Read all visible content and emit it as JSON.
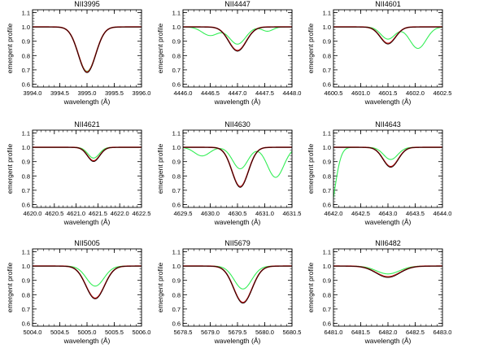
{
  "chart_data": [
    {
      "type": "line",
      "title": "NII3995",
      "xlabel": "wavelength (Å)",
      "ylabel": "emergent profile",
      "xlim": [
        3994.0,
        3996.0
      ],
      "ylim": [
        0.58,
        1.12
      ],
      "xticks": [
        "3994.0",
        "3994.5",
        "3995.0",
        "3995.5",
        "3996.0"
      ],
      "yticks": [
        "0.6",
        "0.7",
        "0.8",
        "0.9",
        "1.0",
        "1.1"
      ],
      "series": [
        {
          "name": "red",
          "color": "#b01010",
          "lines": [
            {
              "c": 3995.0,
              "d": 0.315,
              "w": 0.16
            }
          ]
        },
        {
          "name": "black",
          "color": "#000000",
          "lines": [
            {
              "c": 3995.0,
              "d": 0.32,
              "w": 0.16
            }
          ]
        },
        {
          "name": "green",
          "color": "#33ee55",
          "lines": [
            {
              "c": 3995.0,
              "d": 0.31,
              "w": 0.16
            }
          ]
        }
      ]
    },
    {
      "type": "line",
      "title": "NII4447",
      "xlabel": "wavelength (Å)",
      "ylabel": "emergent profile",
      "xlim": [
        4446.0,
        4448.0
      ],
      "ylim": [
        0.58,
        1.12
      ],
      "xticks": [
        "4446.0",
        "4446.5",
        "4447.0",
        "4447.5",
        "4448.0"
      ],
      "yticks": [
        "0.6",
        "0.7",
        "0.8",
        "0.9",
        "1.0",
        "1.1"
      ],
      "series": [
        {
          "name": "red",
          "color": "#b01010",
          "lines": [
            {
              "c": 4447.0,
              "d": 0.165,
              "w": 0.16
            }
          ]
        },
        {
          "name": "black",
          "color": "#000000",
          "lines": [
            {
              "c": 4447.0,
              "d": 0.17,
              "w": 0.16
            }
          ]
        },
        {
          "name": "green",
          "color": "#33ee55",
          "lines": [
            {
              "c": 4447.0,
              "d": 0.12,
              "w": 0.15
            },
            {
              "c": 4446.5,
              "d": 0.06,
              "w": 0.15
            },
            {
              "c": 4447.55,
              "d": 0.03,
              "w": 0.1
            }
          ]
        }
      ]
    },
    {
      "type": "line",
      "title": "NII4601",
      "xlabel": "wavelength (Å)",
      "ylabel": "emergent profile",
      "xlim": [
        4600.5,
        4602.5
      ],
      "ylim": [
        0.58,
        1.12
      ],
      "xticks": [
        "4600.5",
        "4601.0",
        "4601.5",
        "4602.0",
        "4602.5"
      ],
      "yticks": [
        "0.6",
        "0.7",
        "0.8",
        "0.9",
        "1.0",
        "1.1"
      ],
      "series": [
        {
          "name": "red",
          "color": "#b01010",
          "lines": [
            {
              "c": 4601.5,
              "d": 0.115,
              "w": 0.14
            }
          ]
        },
        {
          "name": "black",
          "color": "#000000",
          "lines": [
            {
              "c": 4601.5,
              "d": 0.12,
              "w": 0.14
            }
          ]
        },
        {
          "name": "green",
          "color": "#33ee55",
          "lines": [
            {
              "c": 4601.5,
              "d": 0.085,
              "w": 0.13
            },
            {
              "c": 4602.05,
              "d": 0.15,
              "w": 0.15
            }
          ]
        }
      ]
    },
    {
      "type": "line",
      "title": "NII4621",
      "xlabel": "wavelength (Å)",
      "ylabel": "emergent profile",
      "xlim": [
        4620.0,
        4622.5
      ],
      "ylim": [
        0.58,
        1.12
      ],
      "xticks": [
        "4620.0",
        "4620.5",
        "4621.0",
        "4621.5",
        "4622.0",
        "4622.5"
      ],
      "yticks": [
        "0.6",
        "0.7",
        "0.8",
        "0.9",
        "1.0",
        "1.1"
      ],
      "series": [
        {
          "name": "red",
          "color": "#b01010",
          "lines": [
            {
              "c": 4621.4,
              "d": 0.095,
              "w": 0.14
            }
          ]
        },
        {
          "name": "black",
          "color": "#000000",
          "lines": [
            {
              "c": 4621.4,
              "d": 0.1,
              "w": 0.14
            }
          ]
        },
        {
          "name": "green",
          "color": "#33ee55",
          "lines": [
            {
              "c": 4621.4,
              "d": 0.075,
              "w": 0.13
            }
          ]
        }
      ]
    },
    {
      "type": "line",
      "title": "NII4630",
      "xlabel": "wavelength (Å)",
      "ylabel": "emergent profile",
      "xlim": [
        4629.5,
        4631.5
      ],
      "ylim": [
        0.58,
        1.12
      ],
      "xticks": [
        "4629.5",
        "4630.0",
        "4630.5",
        "4631.0",
        "4631.5"
      ],
      "yticks": [
        "0.6",
        "0.7",
        "0.8",
        "0.9",
        "1.0",
        "1.1"
      ],
      "series": [
        {
          "name": "red",
          "color": "#b01010",
          "lines": [
            {
              "c": 4630.55,
              "d": 0.275,
              "w": 0.15
            }
          ]
        },
        {
          "name": "black",
          "color": "#000000",
          "lines": [
            {
              "c": 4630.55,
              "d": 0.28,
              "w": 0.15
            }
          ]
        },
        {
          "name": "green",
          "color": "#33ee55",
          "lines": [
            {
              "c": 4630.55,
              "d": 0.15,
              "w": 0.14
            },
            {
              "c": 4629.85,
              "d": 0.06,
              "w": 0.14
            },
            {
              "c": 4631.2,
              "d": 0.21,
              "w": 0.15
            }
          ]
        }
      ]
    },
    {
      "type": "line",
      "title": "NII4643",
      "xlabel": "wavelength (Å)",
      "ylabel": "emergent profile",
      "xlim": [
        4642.0,
        4644.0
      ],
      "ylim": [
        0.58,
        1.12
      ],
      "xticks": [
        "4642.0",
        "4642.5",
        "4643.0",
        "4643.5",
        "4644.0"
      ],
      "yticks": [
        "0.6",
        "0.7",
        "0.8",
        "0.9",
        "1.0",
        "1.1"
      ],
      "series": [
        {
          "name": "red",
          "color": "#b01010",
          "lines": [
            {
              "c": 4643.05,
              "d": 0.135,
              "w": 0.14
            }
          ]
        },
        {
          "name": "black",
          "color": "#000000",
          "lines": [
            {
              "c": 4643.05,
              "d": 0.14,
              "w": 0.14
            }
          ]
        },
        {
          "name": "green",
          "color": "#33ee55",
          "lines": [
            {
              "c": 4643.05,
              "d": 0.085,
              "w": 0.13
            },
            {
              "c": 4641.9,
              "d": 0.5,
              "w": 0.12
            }
          ]
        }
      ]
    },
    {
      "type": "line",
      "title": "NII5005",
      "xlabel": "wavelength (Å)",
      "ylabel": "emergent profile",
      "xlim": [
        5004.0,
        5006.0
      ],
      "ylim": [
        0.58,
        1.12
      ],
      "xticks": [
        "5004.0",
        "5004.5",
        "5005.0",
        "5005.5",
        "5006.0"
      ],
      "yticks": [
        "0.6",
        "0.7",
        "0.8",
        "0.9",
        "1.0",
        "1.1"
      ],
      "series": [
        {
          "name": "red",
          "color": "#b01010",
          "lines": [
            {
              "c": 5005.15,
              "d": 0.225,
              "w": 0.17
            }
          ]
        },
        {
          "name": "black",
          "color": "#000000",
          "lines": [
            {
              "c": 5005.15,
              "d": 0.23,
              "w": 0.17
            }
          ]
        },
        {
          "name": "green",
          "color": "#33ee55",
          "lines": [
            {
              "c": 5005.15,
              "d": 0.14,
              "w": 0.16
            }
          ]
        }
      ]
    },
    {
      "type": "line",
      "title": "NII5679",
      "xlabel": "wavelength (Å)",
      "ylabel": "emergent profile",
      "xlim": [
        5678.5,
        5680.5
      ],
      "ylim": [
        0.58,
        1.12
      ],
      "xticks": [
        "5678.5",
        "5679.0",
        "5679.5",
        "5680.0",
        "5680.5"
      ],
      "yticks": [
        "0.6",
        "0.7",
        "0.8",
        "0.9",
        "1.0",
        "1.1"
      ],
      "series": [
        {
          "name": "red",
          "color": "#b01010",
          "lines": [
            {
              "c": 5679.6,
              "d": 0.255,
              "w": 0.17
            }
          ]
        },
        {
          "name": "black",
          "color": "#000000",
          "lines": [
            {
              "c": 5679.6,
              "d": 0.26,
              "w": 0.17
            }
          ]
        },
        {
          "name": "green",
          "color": "#33ee55",
          "lines": [
            {
              "c": 5679.6,
              "d": 0.16,
              "w": 0.16
            }
          ]
        }
      ]
    },
    {
      "type": "line",
      "title": "NII6482",
      "xlabel": "wavelength (Å)",
      "ylabel": "emergent profile",
      "xlim": [
        6481.0,
        6483.0
      ],
      "ylim": [
        0.58,
        1.12
      ],
      "xticks": [
        "6481.0",
        "6481.5",
        "6482.0",
        "6482.5",
        "6483.0"
      ],
      "yticks": [
        "0.6",
        "0.7",
        "0.8",
        "0.9",
        "1.0",
        "1.1"
      ],
      "series": [
        {
          "name": "red",
          "color": "#b01010",
          "lines": [
            {
              "c": 6482.0,
              "d": 0.075,
              "w": 0.22
            }
          ]
        },
        {
          "name": "black",
          "color": "#000000",
          "lines": [
            {
              "c": 6482.0,
              "d": 0.08,
              "w": 0.22
            }
          ]
        },
        {
          "name": "green",
          "color": "#33ee55",
          "lines": [
            {
              "c": 6482.0,
              "d": 0.055,
              "w": 0.21
            }
          ]
        }
      ]
    }
  ]
}
